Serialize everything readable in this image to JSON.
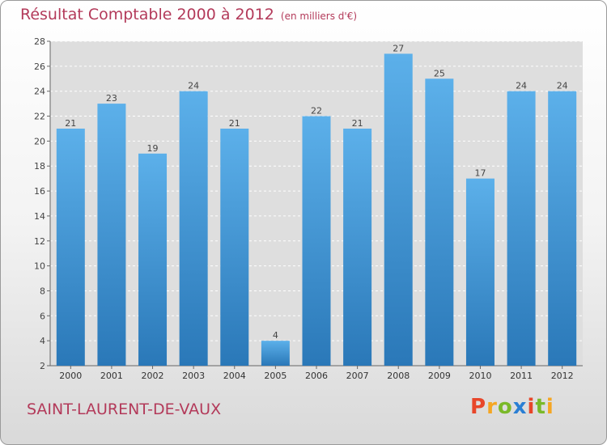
{
  "chart_data": {
    "type": "bar",
    "title": "Résultat Comptable 2000 à 2012",
    "subtitle": "(en milliers d'€)",
    "categories": [
      "2000",
      "2001",
      "2002",
      "2003",
      "2004",
      "2005",
      "2006",
      "2007",
      "2008",
      "2009",
      "2010",
      "2011",
      "2012"
    ],
    "values": [
      21,
      23,
      19,
      24,
      21,
      4,
      22,
      21,
      27,
      25,
      17,
      24,
      24
    ],
    "yticks": [
      2,
      4,
      6,
      8,
      10,
      12,
      14,
      16,
      18,
      20,
      22,
      24,
      26,
      28
    ],
    "ylim": [
      2,
      28
    ],
    "xlabel": "",
    "ylabel": "",
    "grid": true,
    "bar_color": "#4a9fe0"
  },
  "footer": {
    "commune": "SAINT-LAURENT-DE-VAUX",
    "logo_letters": [
      "P",
      "r",
      "o",
      "x",
      "i",
      "t",
      "i"
    ],
    "logo_colors": [
      "#e8462a",
      "#f5a623",
      "#7ab929",
      "#2a7fd4",
      "#e8462a",
      "#7ab929",
      "#f5a623"
    ]
  }
}
